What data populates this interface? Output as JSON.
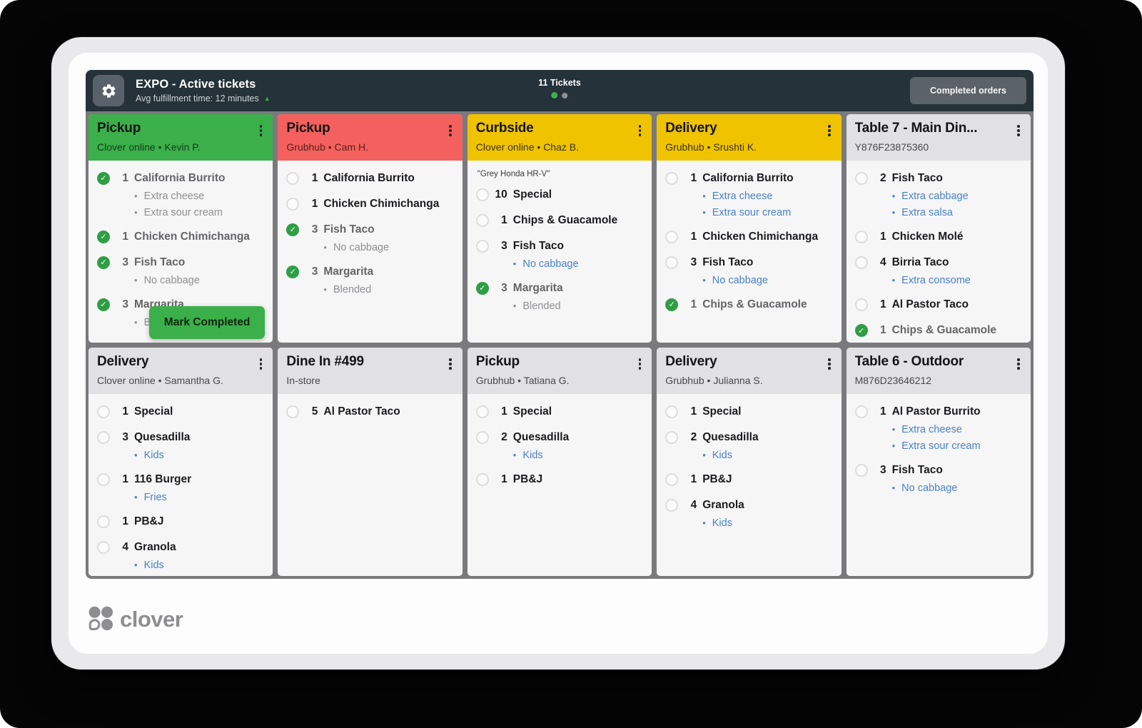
{
  "topbar": {
    "title": "EXPO - Active tickets",
    "subtitle": "Avg fulfillment time: 12 minutes",
    "tickets_count": "11 Tickets",
    "completed_button": "Completed orders"
  },
  "icons": {
    "check": "✓",
    "trend_up": "▲",
    "bullet": "•"
  },
  "colors": {
    "header_green": "#3bb04a",
    "header_red": "#f4605d",
    "header_yellow": "#f0c300",
    "header_gray": "#e1e1e3",
    "modifier_blue": "#4a82c3",
    "check_green": "#2f9e44",
    "topbar_dark": "#26323a"
  },
  "mark_completed_label": "Mark Completed",
  "logo_text": "clover",
  "tickets": [
    {
      "title": "Pickup",
      "subtitle": "Clover online •  Kevin P.",
      "color": "green",
      "show_mark_completed": true,
      "items": [
        {
          "qty": "1",
          "name": "California Burrito",
          "checked": true,
          "mods": [
            "Extra cheese",
            "Extra sour cream"
          ]
        },
        {
          "qty": "1",
          "name": "Chicken Chimichanga",
          "checked": true,
          "mods": []
        },
        {
          "qty": "3",
          "name": "Fish Taco",
          "checked": true,
          "mods": [
            "No cabbage"
          ]
        },
        {
          "qty": "3",
          "name": "Margarita",
          "checked": true,
          "mods": [
            "Blended"
          ]
        }
      ]
    },
    {
      "title": "Pickup",
      "subtitle": "Grubhub •  Cam H.",
      "color": "red",
      "items": [
        {
          "qty": "1",
          "name": "California Burrito",
          "checked": false,
          "mods": []
        },
        {
          "qty": "1",
          "name": "Chicken Chimichanga",
          "checked": false,
          "mods": []
        },
        {
          "qty": "3",
          "name": "Fish Taco",
          "checked": true,
          "mods": [
            "No cabbage"
          ]
        },
        {
          "qty": "3",
          "name": "Margarita",
          "checked": true,
          "mods": [
            "Blended"
          ]
        }
      ]
    },
    {
      "title": "Curbside",
      "subtitle": "Clover online •  Chaz B.",
      "color": "yellow",
      "note": "\"Grey Honda HR-V\"",
      "items": [
        {
          "qty": "10",
          "name": "Special",
          "checked": false,
          "mods": []
        },
        {
          "qty": "1",
          "name": "Chips & Guacamole",
          "checked": false,
          "mods": []
        },
        {
          "qty": "3",
          "name": "Fish Taco",
          "checked": false,
          "mods": [
            "No cabbage"
          ]
        },
        {
          "qty": "3",
          "name": "Margarita",
          "checked": true,
          "mods": [
            "Blended"
          ]
        }
      ]
    },
    {
      "title": "Delivery",
      "subtitle": "Grubhub •  Srushti K.",
      "color": "yellow",
      "items": [
        {
          "qty": "1",
          "name": "California Burrito",
          "checked": false,
          "mods": [
            "Extra cheese",
            "Extra sour cream"
          ]
        },
        {
          "qty": "1",
          "name": "Chicken Chimichanga",
          "checked": false,
          "mods": []
        },
        {
          "qty": "3",
          "name": "Fish Taco",
          "checked": false,
          "mods": [
            "No cabbage"
          ]
        },
        {
          "qty": "1",
          "name": "Chips & Guacamole",
          "checked": true,
          "mods": []
        }
      ]
    },
    {
      "title": "Table 7 - Main Din...",
      "subtitle": "Y876F23875360",
      "color": "gray",
      "items": [
        {
          "qty": "2",
          "name": "Fish Taco",
          "checked": false,
          "mods": [
            "Extra cabbage",
            "Extra salsa"
          ]
        },
        {
          "qty": "1",
          "name": "Chicken Molé",
          "checked": false,
          "mods": []
        },
        {
          "qty": "4",
          "name": "Birria Taco",
          "checked": false,
          "mods": [
            "Extra consome"
          ]
        },
        {
          "qty": "1",
          "name": "Al Pastor Taco",
          "checked": false,
          "mods": []
        },
        {
          "qty": "1",
          "name": "Chips & Guacamole",
          "checked": true,
          "mods": []
        }
      ]
    },
    {
      "title": "Delivery",
      "subtitle": "Clover online •  Samantha G.",
      "color": "gray",
      "items": [
        {
          "qty": "1",
          "name": "Special",
          "checked": false,
          "mods": []
        },
        {
          "qty": "3",
          "name": "Quesadilla",
          "checked": false,
          "mods": [
            "Kids"
          ]
        },
        {
          "qty": "1",
          "name": "116 Burger",
          "checked": false,
          "mods": [
            "Fries"
          ]
        },
        {
          "qty": "1",
          "name": "PB&J",
          "checked": false,
          "mods": []
        },
        {
          "qty": "4",
          "name": "Granola",
          "checked": false,
          "mods": [
            "Kids"
          ]
        }
      ]
    },
    {
      "title": "Dine In #499",
      "subtitle": "In-store",
      "color": "gray",
      "items": [
        {
          "qty": "5",
          "name": "Al Pastor Taco",
          "checked": false,
          "mods": []
        }
      ]
    },
    {
      "title": "Pickup",
      "subtitle": "Grubhub •  Tatiana G.",
      "color": "gray",
      "items": [
        {
          "qty": "1",
          "name": "Special",
          "checked": false,
          "mods": []
        },
        {
          "qty": "2",
          "name": "Quesadilla",
          "checked": false,
          "mods": [
            "Kids"
          ]
        },
        {
          "qty": "1",
          "name": "PB&J",
          "checked": false,
          "mods": []
        }
      ]
    },
    {
      "title": "Delivery",
      "subtitle": "Grubhub •  Julianna S.",
      "color": "gray",
      "items": [
        {
          "qty": "1",
          "name": "Special",
          "checked": false,
          "mods": []
        },
        {
          "qty": "2",
          "name": "Quesadilla",
          "checked": false,
          "mods": [
            "Kids"
          ]
        },
        {
          "qty": "1",
          "name": "PB&J",
          "checked": false,
          "mods": []
        },
        {
          "qty": "4",
          "name": "Granola",
          "checked": false,
          "mods": [
            "Kids"
          ]
        }
      ]
    },
    {
      "title": "Table 6 - Outdoor",
      "subtitle": "M876D23646212",
      "color": "gray",
      "items": [
        {
          "qty": "1",
          "name": "Al Pastor Burrito",
          "checked": false,
          "mods": [
            "Extra cheese",
            "Extra sour cream"
          ]
        },
        {
          "qty": "3",
          "name": "Fish Taco",
          "checked": false,
          "mods": [
            "No cabbage"
          ]
        }
      ]
    }
  ]
}
